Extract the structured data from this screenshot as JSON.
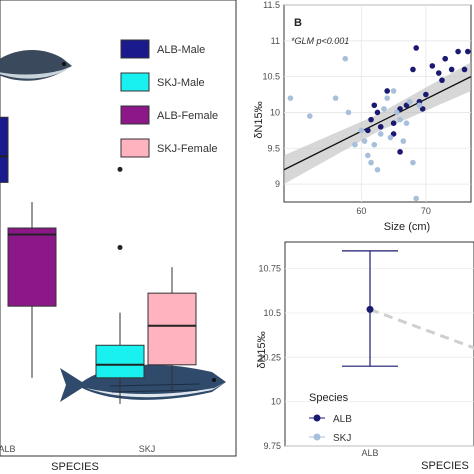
{
  "chart_data": [
    {
      "type": "box",
      "xlabel": "SPECIES",
      "categories": [
        "ALB",
        "SKJ"
      ],
      "legend": [
        "ALB-Male",
        "SKJ-Male",
        "ALB-Female",
        "SKJ-Female"
      ],
      "colors": {
        "ALB-Male": "#1a1a8c",
        "SKJ-Male": "#19f0f0",
        "ALB-Female": "#8b1789",
        "SKJ-Female": "#ffb3bf"
      },
      "boxes": [
        {
          "name": "ALB-Male",
          "category": "ALB",
          "q1": 10.2,
          "median": 10.6,
          "q3": 11.2,
          "whisker_low": 9.9,
          "whisker_high": 11.5,
          "outliers": []
        },
        {
          "name": "ALB-Female",
          "category": "ALB",
          "q1": 8.3,
          "median": 9.4,
          "q3": 9.5,
          "whisker_low": 7.2,
          "whisker_high": 9.9,
          "outliers": []
        },
        {
          "name": "SKJ-Male",
          "category": "SKJ",
          "q1": 7.2,
          "median": 7.4,
          "q3": 7.7,
          "whisker_low": 6.8,
          "whisker_high": 8.2,
          "outliers": [
            10.4,
            9.2
          ]
        },
        {
          "name": "SKJ-Female",
          "category": "SKJ",
          "q1": 7.4,
          "median": 8.0,
          "q3": 8.5,
          "whisker_low": 7.0,
          "whisker_high": 8.9,
          "outliers": []
        }
      ]
    },
    {
      "type": "scatter",
      "panel_label": "B",
      "annotation": "*GLM p<0.001",
      "xlabel": "Size (cm)",
      "ylabel": "δN15‰",
      "xlim": [
        48,
        77
      ],
      "ylim": [
        8.75,
        11.5
      ],
      "xticks": [
        60,
        70
      ],
      "yticks": [
        9,
        9.5,
        10,
        10.5,
        11,
        11.5
      ],
      "series": [
        {
          "name": "ALB",
          "color": "#1a1a70",
          "points": [
            [
              61,
              9.75
            ],
            [
              61.5,
              9.9
            ],
            [
              62,
              10.1
            ],
            [
              62.5,
              10
            ],
            [
              63,
              9.8
            ],
            [
              64,
              10.3
            ],
            [
              65,
              9.85
            ],
            [
              66,
              10.05
            ],
            [
              67,
              10.1
            ],
            [
              68,
              10.6
            ],
            [
              68.5,
              10.9
            ],
            [
              69,
              10.15
            ],
            [
              70,
              10.25
            ],
            [
              71,
              10.65
            ],
            [
              72,
              10.55
            ],
            [
              73,
              10.75
            ],
            [
              74,
              10.6
            ],
            [
              75,
              10.85
            ],
            [
              76,
              10.6
            ],
            [
              76.5,
              10.85
            ],
            [
              66,
              9.45
            ],
            [
              65,
              9.7
            ],
            [
              69.5,
              10.05
            ],
            [
              72.5,
              10.45
            ]
          ]
        },
        {
          "name": "SKJ",
          "color": "#a8bfdc",
          "points": [
            [
              49,
              10.2
            ],
            [
              52,
              9.95
            ],
            [
              56,
              10.2
            ],
            [
              57.5,
              10.75
            ],
            [
              59,
              9.55
            ],
            [
              60,
              9.75
            ],
            [
              60.5,
              9.6
            ],
            [
              61,
              9.4
            ],
            [
              61.5,
              9.3
            ],
            [
              62,
              9.55
            ],
            [
              62.5,
              9.2
            ],
            [
              63,
              9.7
            ],
            [
              63.5,
              10.05
            ],
            [
              64,
              10.2
            ],
            [
              64.5,
              9.65
            ],
            [
              65,
              10.3
            ],
            [
              65.5,
              10.0
            ],
            [
              66,
              9.9
            ],
            [
              66.5,
              9.6
            ],
            [
              67,
              9.85
            ],
            [
              67.5,
              10.15
            ],
            [
              68,
              9.3
            ],
            [
              68.5,
              8.8
            ],
            [
              69,
              10.1
            ],
            [
              58,
              10.0
            ]
          ]
        }
      ],
      "fit": {
        "x": [
          48,
          77
        ],
        "y": [
          9.2,
          10.5
        ],
        "band": [
          0.2,
          0.12,
          0.2
        ]
      }
    },
    {
      "type": "pointrange",
      "xlabel": "SPECIES",
      "ylabel": "δN15‰",
      "categories": [
        "ALB",
        "SKJ"
      ],
      "ylim": [
        9.75,
        10.9
      ],
      "yticks": [
        9.75,
        10,
        10.25,
        10.5,
        10.75
      ],
      "series": [
        {
          "name": "ALB",
          "color": "#1a1a70",
          "mean": 10.52,
          "low": 10.2,
          "high": 10.85
        },
        {
          "name": "SKJ",
          "color": "#a8bfdc",
          "mean": 10.27
        }
      ],
      "legend_title": "Species"
    }
  ]
}
